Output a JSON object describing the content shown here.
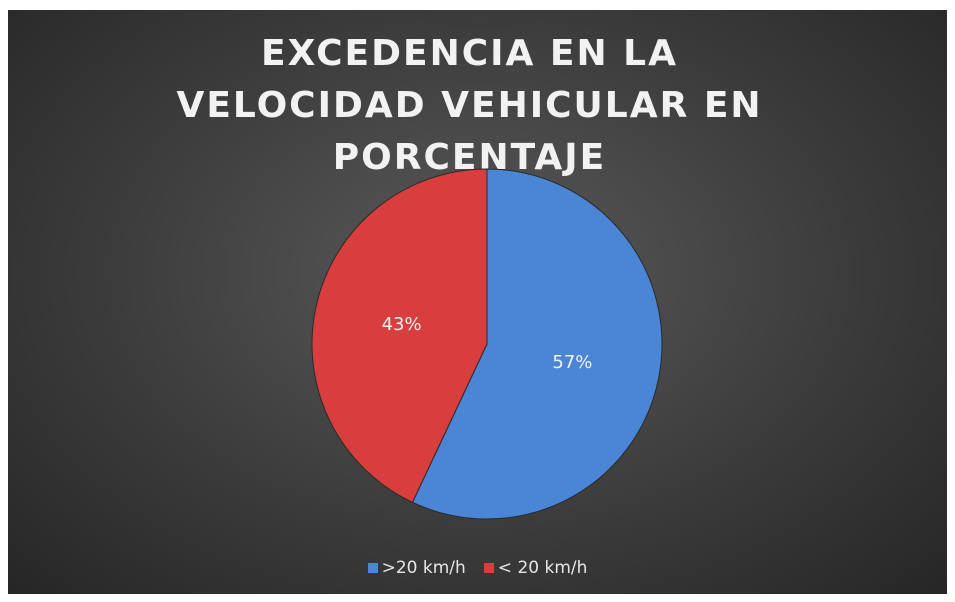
{
  "chart_data": {
    "type": "pie",
    "title": "EXCEDENCIA EN LA VELOCIDAD VEHICULAR EN PORCENTAJE",
    "categories": [
      ">20 km/h",
      "< 20 km/h"
    ],
    "values": [
      57,
      43
    ],
    "value_labels": [
      "57%",
      "43%"
    ],
    "colors": [
      "#4a85d6",
      "#d83e3e"
    ],
    "legend": "bottom"
  }
}
